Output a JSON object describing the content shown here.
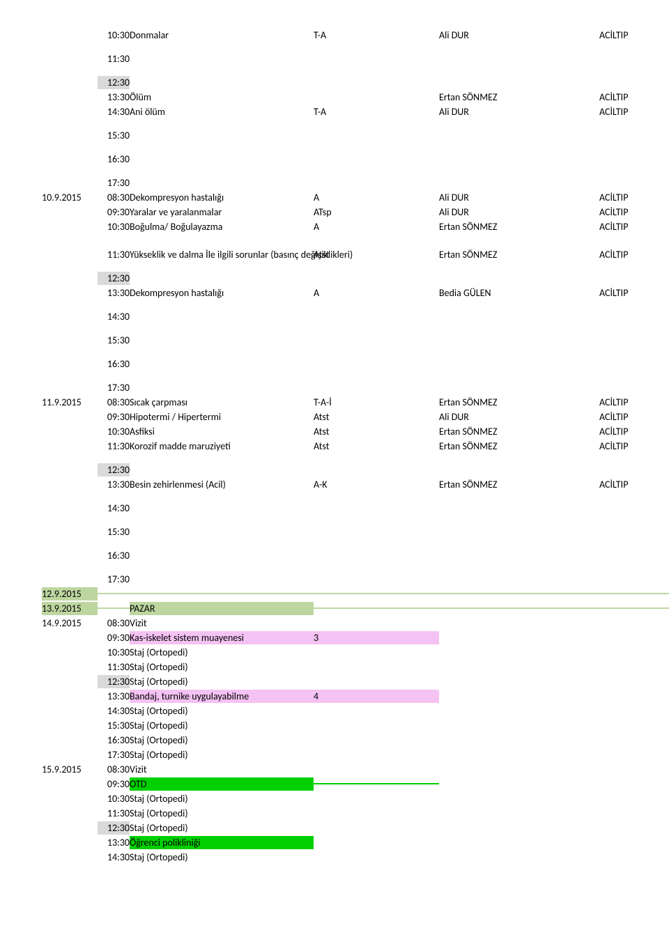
{
  "rows": [
    {
      "time": "10:30",
      "topic": "Donmalar",
      "code": "T-A",
      "person": "Ali DUR",
      "dept": "ACİLTIP"
    },
    {
      "time": "11:30"
    },
    {
      "time": "12:30",
      "shade": true
    },
    {
      "time": "13:30",
      "topic": "Ölüm",
      "code": "",
      "person": "Ertan SÖNMEZ",
      "dept": "ACİLTIP"
    },
    {
      "time": "14:30",
      "topic": "Ani ölüm",
      "code": "T-A",
      "person": "Ali DUR",
      "dept": "ACİLTIP"
    },
    {
      "time": "15:30"
    },
    {
      "time": "16:30"
    },
    {
      "time": "17:30"
    },
    {
      "date": "10.9.2015",
      "time": "08:30",
      "topic": "Dekompresyon hastalığı",
      "code": "A",
      "person": "Ali DUR",
      "dept": "ACİLTIP"
    },
    {
      "time": "09:30",
      "topic": "Yaralar ve yaralanmalar",
      "code": "ATsp",
      "person": "Ali DUR",
      "dept": "ACİLTIP"
    },
    {
      "time": "10:30",
      "topic": "Boğulma/ Boğulayazma",
      "code": "A",
      "person": "Ertan SÖNMEZ",
      "dept": "ACİLTIP"
    },
    {
      "spacer": true
    },
    {
      "time": "11:30",
      "topic": "Yükseklik ve dalma İle ilgili sorunlar (basınç değişiklikleri)",
      "code": "Atst",
      "person": "Ertan SÖNMEZ",
      "dept": "ACİLTIP"
    },
    {
      "time": "12:30",
      "shade": true
    },
    {
      "time": "13:30",
      "topic": "Dekompresyon hastalığı",
      "code": "A",
      "person": "Bedia GÜLEN",
      "dept": "ACİLTIP"
    },
    {
      "time": "14:30"
    },
    {
      "time": "15:30"
    },
    {
      "time": "16:30"
    },
    {
      "time": "17:30"
    },
    {
      "date": "11.9.2015",
      "time": "08:30",
      "topic": "Sıcak çarpması",
      "code": "T-A-İ",
      "person": "Ertan SÖNMEZ",
      "dept": "ACİLTIP"
    },
    {
      "time": "09:30",
      "topic": "Hipotermi / Hipertermi",
      "code": "Atst",
      "person": "Ali DUR",
      "dept": "ACİLTIP"
    },
    {
      "time": "10:30",
      "topic": "Asfiksi",
      "code": "Atst",
      "person": "Ertan SÖNMEZ",
      "dept": "ACİLTIP"
    },
    {
      "time": "11:30",
      "topic": "Korozif madde maruziyeti",
      "code": "Atst",
      "person": "Ertan SÖNMEZ",
      "dept": "ACİLTIP"
    },
    {
      "time": "12:30",
      "shade": true
    },
    {
      "time": "13:30",
      "topic": "Besin zehirlenmesi (Acil)",
      "code": "A-K",
      "person": "Ertan SÖNMEZ",
      "dept": "ACİLTIP"
    },
    {
      "time": "14:30"
    },
    {
      "time": "15:30"
    },
    {
      "time": "16:30"
    },
    {
      "time": "17:30"
    },
    {
      "date": "12.9.2015",
      "bg": "olive",
      "full": true
    },
    {
      "date": "13.9.2015",
      "topic": "PAZAR",
      "bg": "olive",
      "full": true
    },
    {
      "date": "14.9.2015",
      "time": "08:30",
      "topic": "Vizit"
    },
    {
      "time": "09:30",
      "topic": "Kas-iskelet sistem muayenesi",
      "code": "3",
      "bg": "pink"
    },
    {
      "time": "10:30",
      "topic": "Staj (Ortopedi)"
    },
    {
      "time": "11:30",
      "topic": "Staj (Ortopedi)"
    },
    {
      "time": "12:30",
      "topic": "Staj (Ortopedi)",
      "shade": true
    },
    {
      "time": "13:30",
      "topic": "Bandaj, turnike uygulayabilme",
      "code": "4",
      "bg": "pink"
    },
    {
      "time": "14:30",
      "topic": "Staj (Ortopedi)"
    },
    {
      "time": "15:30",
      "topic": "Staj (Ortopedi)"
    },
    {
      "time": "16:30",
      "topic": "Staj (Ortopedi)"
    },
    {
      "time": "17:30",
      "topic": "Staj (Ortopedi)"
    },
    {
      "date": "15.9.2015",
      "time": "08:30",
      "topic": "Vizit"
    },
    {
      "time": "09:30",
      "topic": "OTD",
      "bg": "green"
    },
    {
      "time": "10:30",
      "topic": "Staj (Ortopedi)"
    },
    {
      "time": "11:30",
      "topic": "Staj (Ortopedi)"
    },
    {
      "time": "12:30",
      "topic": "Staj (Ortopedi)",
      "shade": true
    },
    {
      "time": "13:30",
      "topic": "Öğrenci polikliniği",
      "bg": "green-single"
    },
    {
      "time": "14:30",
      "topic": "Staj (Ortopedi)"
    }
  ],
  "colors": {
    "gray": "#d9d9d9",
    "pink": "#f4c2f3",
    "olive": "#bdd6a0",
    "green": "#00d000"
  }
}
